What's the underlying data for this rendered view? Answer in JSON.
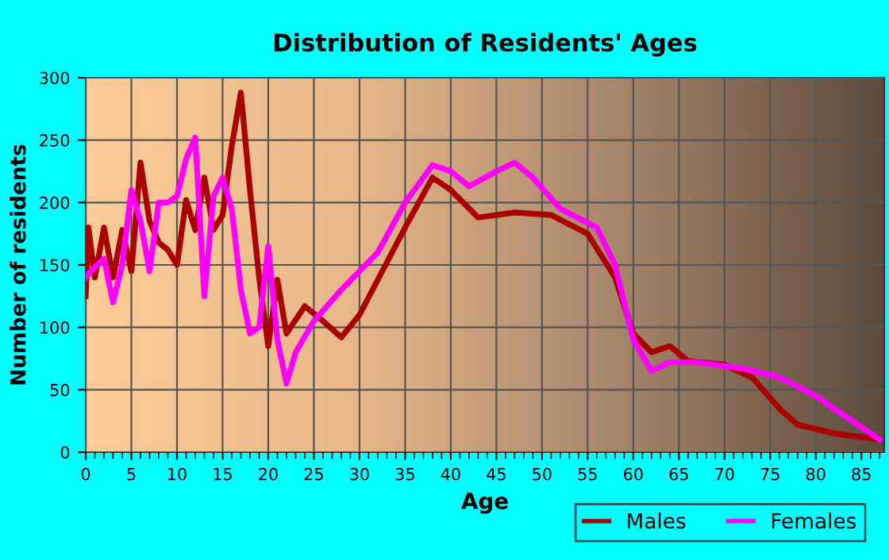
{
  "chart_data": {
    "type": "line",
    "title": "Distribution of Residents' Ages",
    "xlabel": "Age",
    "ylabel": "Number of residents",
    "xlim": [
      0,
      87.5
    ],
    "xticks": [
      0,
      5,
      10,
      15,
      20,
      25,
      30,
      35,
      40,
      45,
      50,
      55,
      60,
      65,
      70,
      75,
      80,
      85
    ],
    "ylim": [
      0,
      300
    ],
    "yticks": [
      0,
      50,
      100,
      150,
      200,
      250,
      300
    ],
    "grid": true,
    "legend": "bottom right",
    "line_style": "solid",
    "marker": "none",
    "series": [
      {
        "name": "Males",
        "color": "#aa0000",
        "x": [
          0,
          0.3,
          1,
          2,
          3,
          4,
          5,
          6,
          7,
          8,
          9,
          10,
          11,
          12,
          13,
          14,
          15,
          16,
          17,
          18,
          19,
          20,
          21,
          22,
          24,
          26,
          28,
          30,
          35,
          38,
          40,
          43,
          47,
          51,
          55,
          58,
          60,
          62,
          64,
          66,
          70,
          73,
          76,
          78,
          82,
          87
        ],
        "values": [
          125,
          180,
          140,
          180,
          140,
          178,
          145,
          232,
          185,
          168,
          162,
          150,
          202,
          178,
          220,
          178,
          190,
          245,
          288,
          210,
          140,
          85,
          138,
          95,
          117,
          105,
          92,
          110,
          180,
          220,
          210,
          188,
          192,
          190,
          175,
          140,
          95,
          80,
          85,
          73,
          70,
          60,
          35,
          22,
          15,
          10
        ]
      },
      {
        "name": "Females",
        "color": "#ff00ff",
        "x": [
          0,
          1,
          2,
          3,
          4,
          5,
          6,
          7,
          8,
          9,
          10,
          11,
          12,
          13,
          14,
          15,
          16,
          17,
          18,
          19,
          20,
          21,
          22,
          23,
          25,
          28,
          32,
          35,
          38,
          40,
          42,
          45,
          47,
          49,
          52,
          56,
          58,
          60,
          62,
          64,
          67,
          72,
          76,
          80,
          84,
          87
        ],
        "values": [
          140,
          148,
          155,
          120,
          150,
          210,
          185,
          145,
          200,
          200,
          205,
          235,
          252,
          125,
          205,
          220,
          195,
          130,
          95,
          100,
          165,
          90,
          55,
          80,
          105,
          130,
          160,
          200,
          230,
          225,
          213,
          225,
          232,
          220,
          195,
          180,
          150,
          90,
          65,
          72,
          72,
          67,
          60,
          45,
          25,
          10
        ]
      }
    ]
  }
}
